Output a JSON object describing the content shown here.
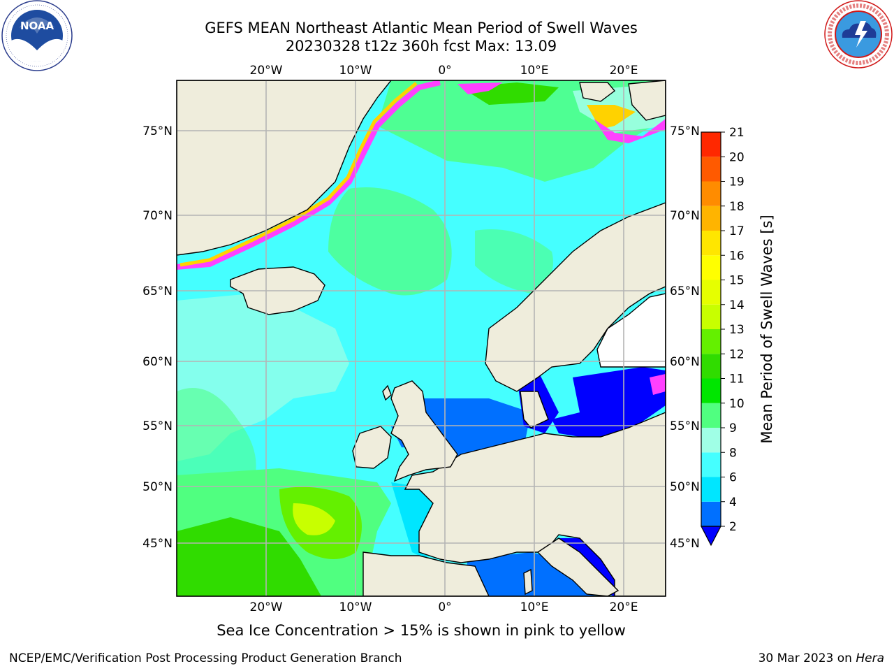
{
  "header": {
    "title_line1": "GEFS MEAN Northeast Atlantic Mean Period of Swell Waves",
    "title_line2": "20230328 t12z 360h fcst   Max: 13.09"
  },
  "logos": {
    "left": "noaa-logo",
    "right": "nws-logo"
  },
  "map": {
    "lon_labels": [
      "20°W",
      "10°W",
      "0°",
      "10°E",
      "20°E"
    ],
    "lat_labels": [
      "75°N",
      "70°N",
      "65°N",
      "60°N",
      "55°N",
      "50°N",
      "45°N"
    ],
    "land_color": "#efeddc",
    "grid_color": "#b4b4b4"
  },
  "colorbar": {
    "label": "Mean Period of Swell Waves [s]",
    "ticks": [
      "2",
      "4",
      "6",
      "8",
      "9",
      "10",
      "11",
      "12",
      "13",
      "14",
      "15",
      "16",
      "17",
      "18",
      "19",
      "20",
      "21"
    ],
    "colors": [
      "#0070ff",
      "#00e6ff",
      "#45ffff",
      "#a0ffe6",
      "#50ff80",
      "#00e600",
      "#30dc00",
      "#64f000",
      "#c8ff00",
      "#e6ff00",
      "#ffff00",
      "#ffe600",
      "#ffb400",
      "#ff8c00",
      "#ff5a00",
      "#ff2800"
    ],
    "under_color": "#0000ff"
  },
  "caption": "Sea Ice Concentration > 15% is shown in pink to yellow",
  "footer": {
    "left": "NCEP/EMC/Verification Post Processing Product Generation Branch",
    "right_date": "30 Mar 2023 on ",
    "right_host": "Hera"
  }
}
